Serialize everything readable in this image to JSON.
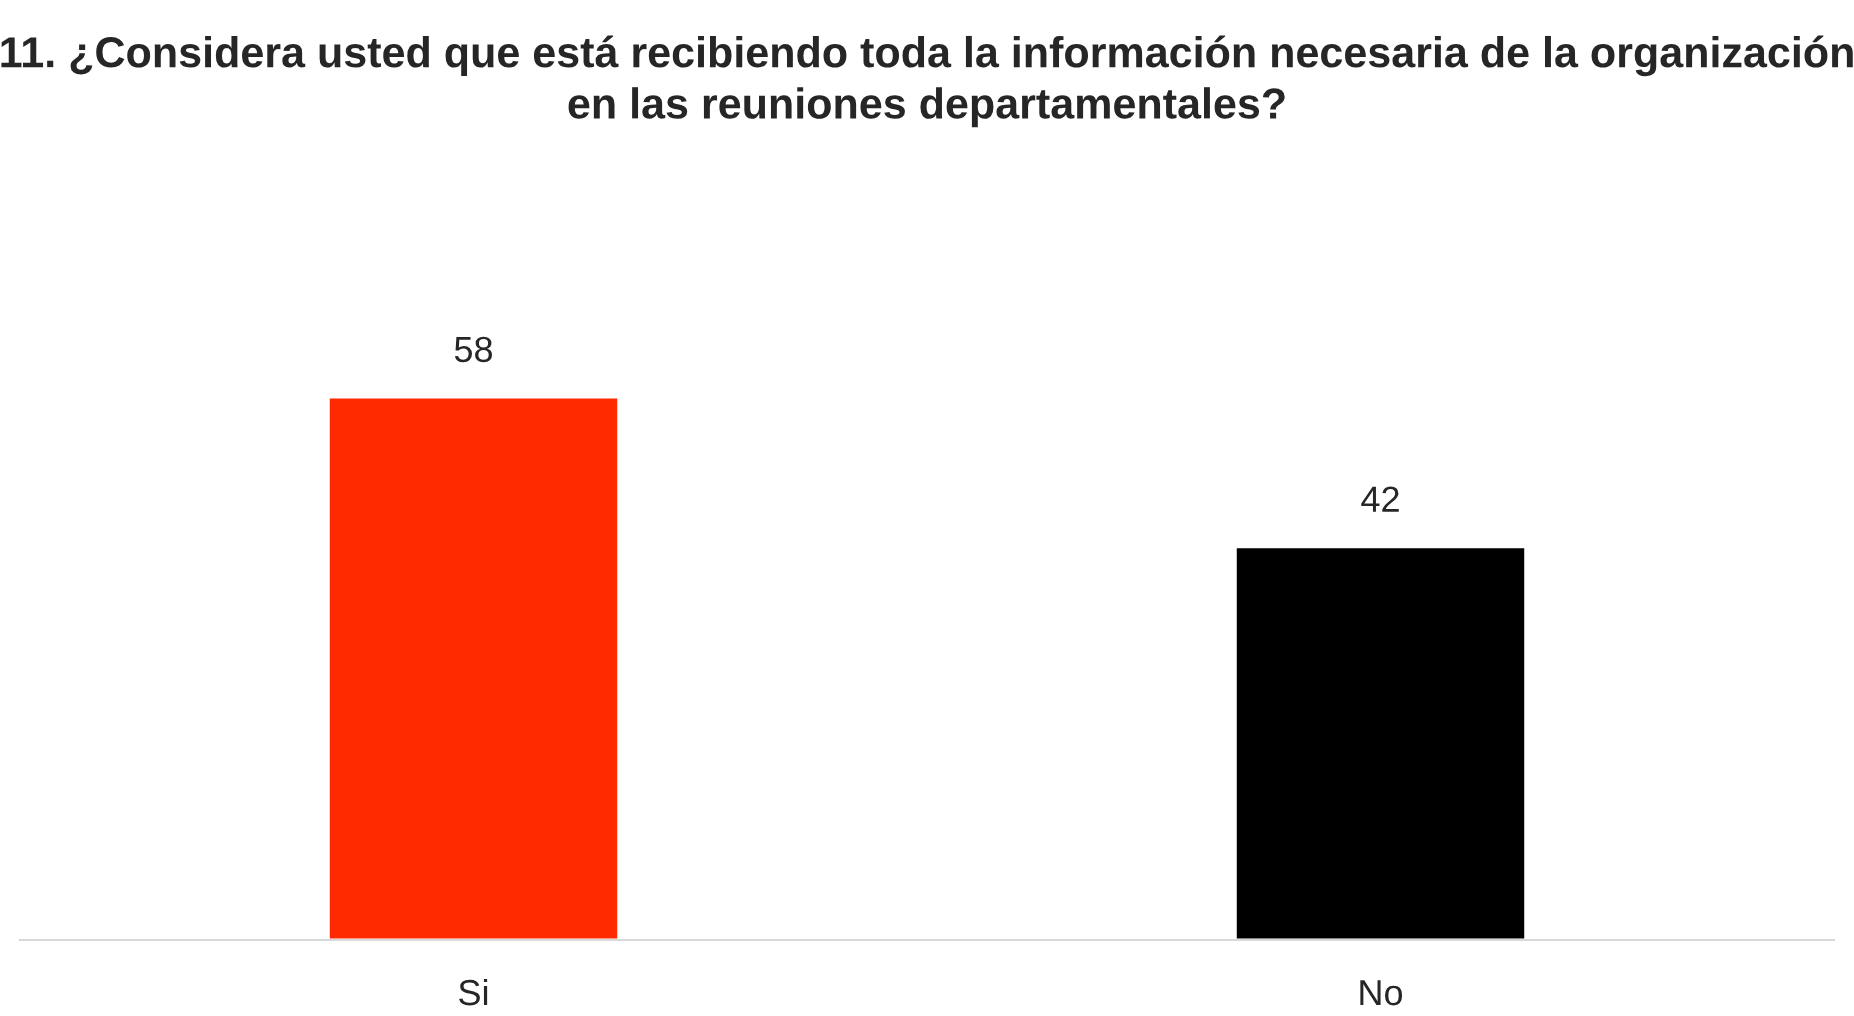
{
  "chart_data": {
    "type": "bar",
    "title": "11. ¿Considera usted que está recibiendo toda la información necesaria de la organización en las reuniones departamentales?",
    "categories": [
      "Si",
      "No"
    ],
    "values": [
      58,
      42
    ],
    "colors": [
      "#ff2a00",
      "#000000"
    ],
    "tick_labels": "x",
    "data_labels": true,
    "grid": false,
    "legend": false
  }
}
